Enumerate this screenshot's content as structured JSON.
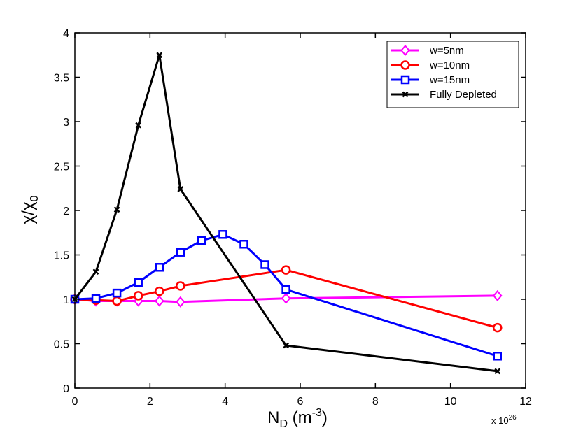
{
  "chart_data": {
    "type": "line",
    "title": "",
    "xlabel": {
      "base": "N",
      "sub": "D",
      "unit_open": " (m",
      "sup": "-3",
      "unit_close": ")"
    },
    "ylabel": {
      "base": "χ/χ",
      "sub": "0"
    },
    "x_multiplier": {
      "base": "x 10",
      "sup": "26"
    },
    "xlim": [
      0,
      12
    ],
    "ylim": [
      0,
      4
    ],
    "xticks": [
      0,
      2,
      4,
      6,
      8,
      10,
      12
    ],
    "yticks": [
      0,
      0.5,
      1,
      1.5,
      2,
      2.5,
      3,
      3.5,
      4
    ],
    "ytick_labels": [
      "0",
      "0.5",
      "1",
      "1.5",
      "2",
      "2.5",
      "3",
      "3.5",
      "4"
    ],
    "grid": false,
    "legend_position": "top-right",
    "series": [
      {
        "name": "w=5nm",
        "color": "#ff00ff",
        "marker": "diamond",
        "x": [
          0,
          0.56,
          1.12,
          1.69,
          2.25,
          2.81,
          5.62,
          11.25
        ],
        "y": [
          1.0,
          0.98,
          0.98,
          0.98,
          0.98,
          0.97,
          1.01,
          1.04
        ]
      },
      {
        "name": "w=10nm",
        "color": "#ff0000",
        "marker": "circle",
        "x": [
          0,
          0.56,
          1.12,
          1.69,
          2.25,
          2.81,
          5.62,
          11.25
        ],
        "y": [
          1.0,
          0.99,
          0.98,
          1.04,
          1.09,
          1.15,
          1.33,
          0.68
        ]
      },
      {
        "name": "w=15nm",
        "color": "#0000ff",
        "marker": "square",
        "x": [
          0,
          0.56,
          1.12,
          1.69,
          2.25,
          2.81,
          3.37,
          3.94,
          4.5,
          5.06,
          5.62,
          11.25
        ],
        "y": [
          1.0,
          1.01,
          1.07,
          1.19,
          1.36,
          1.53,
          1.66,
          1.73,
          1.62,
          1.39,
          1.11,
          0.36
        ]
      },
      {
        "name": "Fully Depleted",
        "color": "#000000",
        "marker": "x",
        "x": [
          0,
          0.56,
          1.12,
          1.69,
          2.25,
          2.81,
          5.62,
          11.25
        ],
        "y": [
          1.0,
          1.31,
          2.01,
          2.96,
          3.75,
          2.24,
          0.48,
          0.19
        ]
      }
    ]
  }
}
